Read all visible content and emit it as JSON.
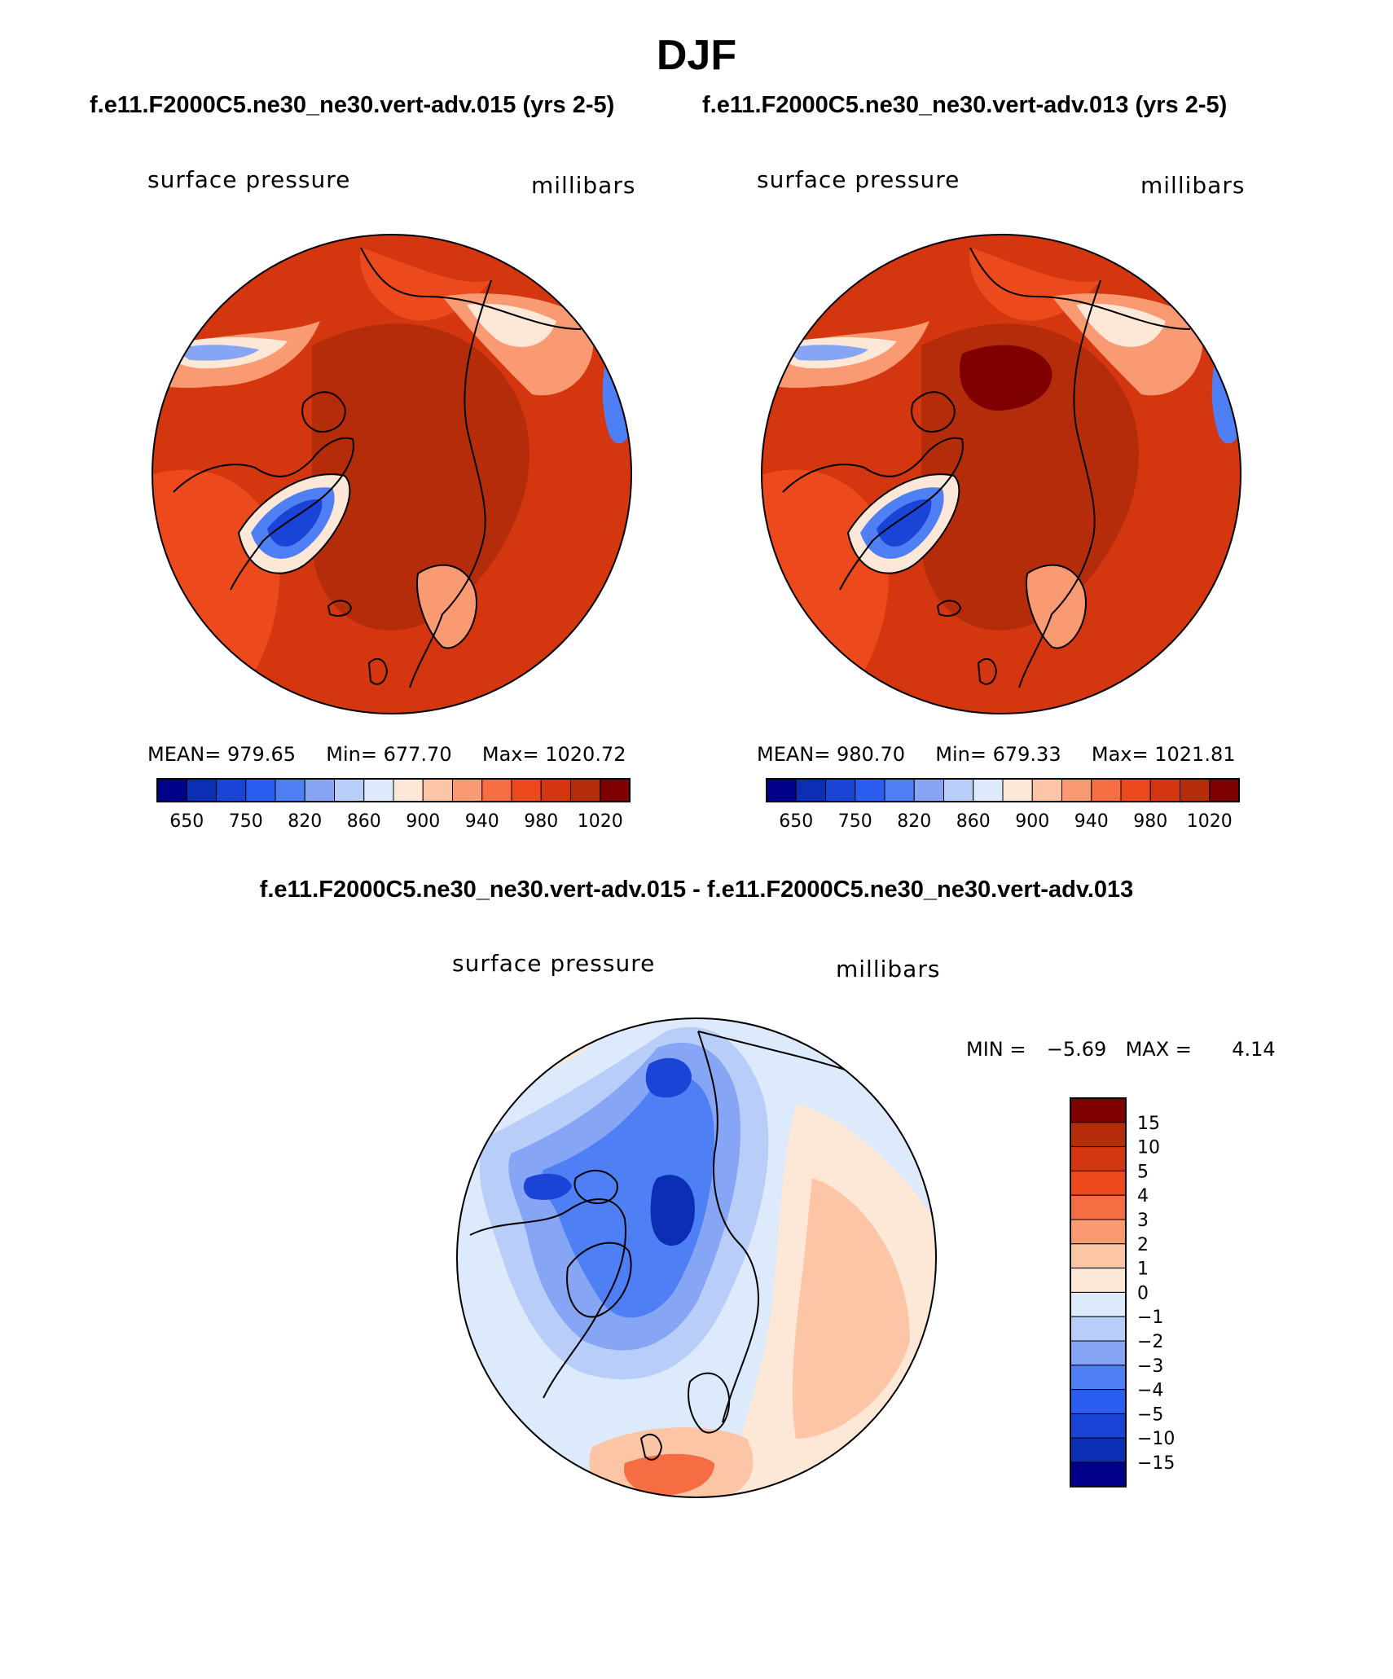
{
  "page": {
    "title": "DJF"
  },
  "panels": [
    {
      "case": "f.e11.F2000C5.ne30_ne30.vert-adv.015 (yrs 2-5)",
      "left_label": "surface pressure",
      "right_label": "millibars",
      "stats": {
        "mean_label": "MEAN=",
        "mean": "979.65",
        "min_label": "Min=",
        "min": "677.70",
        "max_label": "Max=",
        "max": "1020.72"
      }
    },
    {
      "case": "f.e11.F2000C5.ne30_ne30.vert-adv.013 (yrs 2-5)",
      "left_label": "surface pressure",
      "right_label": "millibars",
      "stats": {
        "mean_label": "MEAN=",
        "mean": "980.70",
        "min_label": "Min=",
        "min": "679.33",
        "max_label": "Max=",
        "max": "1021.81"
      }
    }
  ],
  "abs_colorbar": {
    "colors": [
      "#00008b",
      "#0a2fb4",
      "#1a44d6",
      "#2b5df0",
      "#4f7ff4",
      "#86a6f5",
      "#b8cdf8",
      "#ddeafc",
      "#fde7d6",
      "#fcc6a6",
      "#f99a72",
      "#f66c43",
      "#ec4a1c",
      "#d4360f",
      "#b52c0a",
      "#7e0000"
    ],
    "labels": [
      "650",
      "750",
      "820",
      "860",
      "900",
      "940",
      "980",
      "1020"
    ]
  },
  "diff_panel": {
    "title": "f.e11.F2000C5.ne30_ne30.vert-adv.015 - f.e11.F2000C5.ne30_ne30.vert-adv.013",
    "left_label": "surface pressure",
    "right_label": "millibars",
    "stats": {
      "min_label": "MIN =",
      "min": "−5.69",
      "max_label": "MAX =",
      "max": "4.14"
    },
    "colorbar": {
      "colors_top_to_bottom": [
        "#7e0000",
        "#b52c0a",
        "#d4360f",
        "#ec4a1c",
        "#f66c43",
        "#f99a72",
        "#fcc6a6",
        "#fde7d6",
        "#ddeafc",
        "#b8cdf8",
        "#86a6f5",
        "#4f7ff4",
        "#2b5df0",
        "#1a44d6",
        "#0a2fb4",
        "#00008b"
      ],
      "labels_top_to_bottom": [
        "15",
        "10",
        "5",
        "4",
        "3",
        "2",
        "1",
        "0",
        "−1",
        "−2",
        "−3",
        "−4",
        "−5",
        "−10",
        "−15"
      ]
    }
  }
}
